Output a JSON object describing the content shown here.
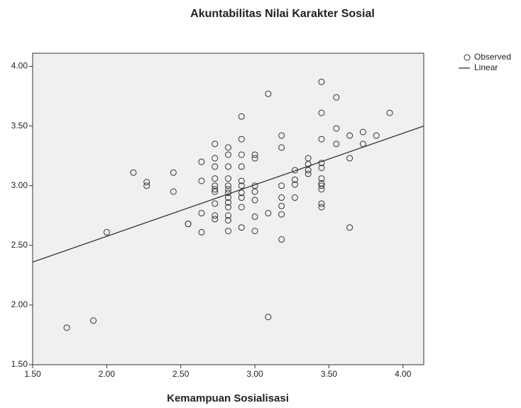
{
  "chart_data": {
    "type": "scatter",
    "title": "Akuntabilitas Nilai Karakter Sosial",
    "x_label": "Kemampuan Sosialisasi",
    "xlim": [
      1.5,
      4.14
    ],
    "ylim": [
      1.5,
      4.11
    ],
    "xticks": [
      {
        "value": 1.5,
        "label": "1.50"
      },
      {
        "value": 2.0,
        "label": "2.00"
      },
      {
        "value": 2.5,
        "label": "2.50"
      },
      {
        "value": 3.0,
        "label": "3.00"
      },
      {
        "value": 3.5,
        "label": "3.50"
      },
      {
        "value": 4.0,
        "label": "4.00"
      }
    ],
    "yticks": [
      {
        "value": 1.5,
        "label": "1.50"
      },
      {
        "value": 2.0,
        "label": "2.00"
      },
      {
        "value": 2.5,
        "label": "2.50"
      },
      {
        "value": 3.0,
        "label": "3.00"
      },
      {
        "value": 3.5,
        "label": "3.50"
      },
      {
        "value": 4.0,
        "label": "4.00"
      }
    ],
    "legend": "right",
    "series": [
      {
        "name": "Observed",
        "type": "scatter",
        "color": "#333333",
        "x": [
          1.73,
          1.91,
          2.0,
          2.18,
          2.27,
          2.27,
          2.45,
          2.45,
          2.55,
          2.55,
          2.64,
          2.64,
          2.64,
          2.64,
          2.73,
          2.73,
          2.73,
          2.73,
          2.73,
          2.73,
          2.73,
          2.73,
          2.73,
          2.73,
          2.82,
          2.82,
          2.82,
          2.82,
          2.82,
          2.82,
          2.82,
          2.82,
          2.82,
          2.82,
          2.82,
          2.82,
          2.82,
          2.91,
          2.91,
          2.91,
          2.91,
          2.91,
          2.91,
          2.91,
          2.91,
          2.91,
          2.91,
          3.0,
          3.0,
          3.0,
          3.0,
          3.0,
          3.0,
          3.0,
          3.09,
          3.09,
          3.09,
          3.18,
          3.18,
          3.18,
          3.18,
          3.18,
          3.18,
          3.18,
          3.27,
          3.27,
          3.27,
          3.27,
          3.36,
          3.36,
          3.36,
          3.36,
          3.45,
          3.45,
          3.45,
          3.45,
          3.45,
          3.45,
          3.45,
          3.45,
          3.45,
          3.45,
          3.45,
          3.55,
          3.55,
          3.55,
          3.64,
          3.64,
          3.64,
          3.73,
          3.73,
          3.82,
          3.91
        ],
        "values": [
          1.81,
          1.87,
          2.61,
          3.11,
          3.03,
          3.0,
          3.11,
          2.95,
          2.68,
          2.68,
          3.2,
          3.04,
          2.77,
          2.61,
          3.35,
          3.23,
          3.16,
          3.06,
          3.0,
          2.97,
          2.95,
          2.85,
          2.75,
          2.72,
          3.32,
          3.26,
          3.16,
          3.06,
          3.0,
          2.97,
          2.94,
          2.9,
          2.86,
          2.82,
          2.75,
          2.71,
          2.62,
          3.58,
          3.39,
          3.26,
          3.16,
          3.04,
          3.0,
          2.94,
          2.9,
          2.82,
          2.65,
          3.26,
          3.23,
          3.0,
          2.95,
          2.88,
          2.74,
          2.62,
          3.77,
          2.77,
          1.9,
          3.42,
          3.32,
          3.0,
          2.9,
          2.83,
          2.76,
          2.55,
          3.13,
          3.05,
          3.01,
          2.9,
          3.23,
          3.18,
          3.13,
          3.1,
          3.87,
          3.61,
          3.39,
          3.19,
          3.15,
          3.06,
          3.02,
          3.0,
          2.97,
          2.85,
          2.82,
          3.74,
          3.48,
          3.35,
          3.42,
          3.23,
          2.65,
          3.45,
          3.35,
          3.42,
          3.61
        ]
      },
      {
        "name": "Linear",
        "type": "line",
        "color": "#333333",
        "x": [
          1.5,
          4.14
        ],
        "values": [
          2.36,
          3.5
        ]
      }
    ]
  }
}
